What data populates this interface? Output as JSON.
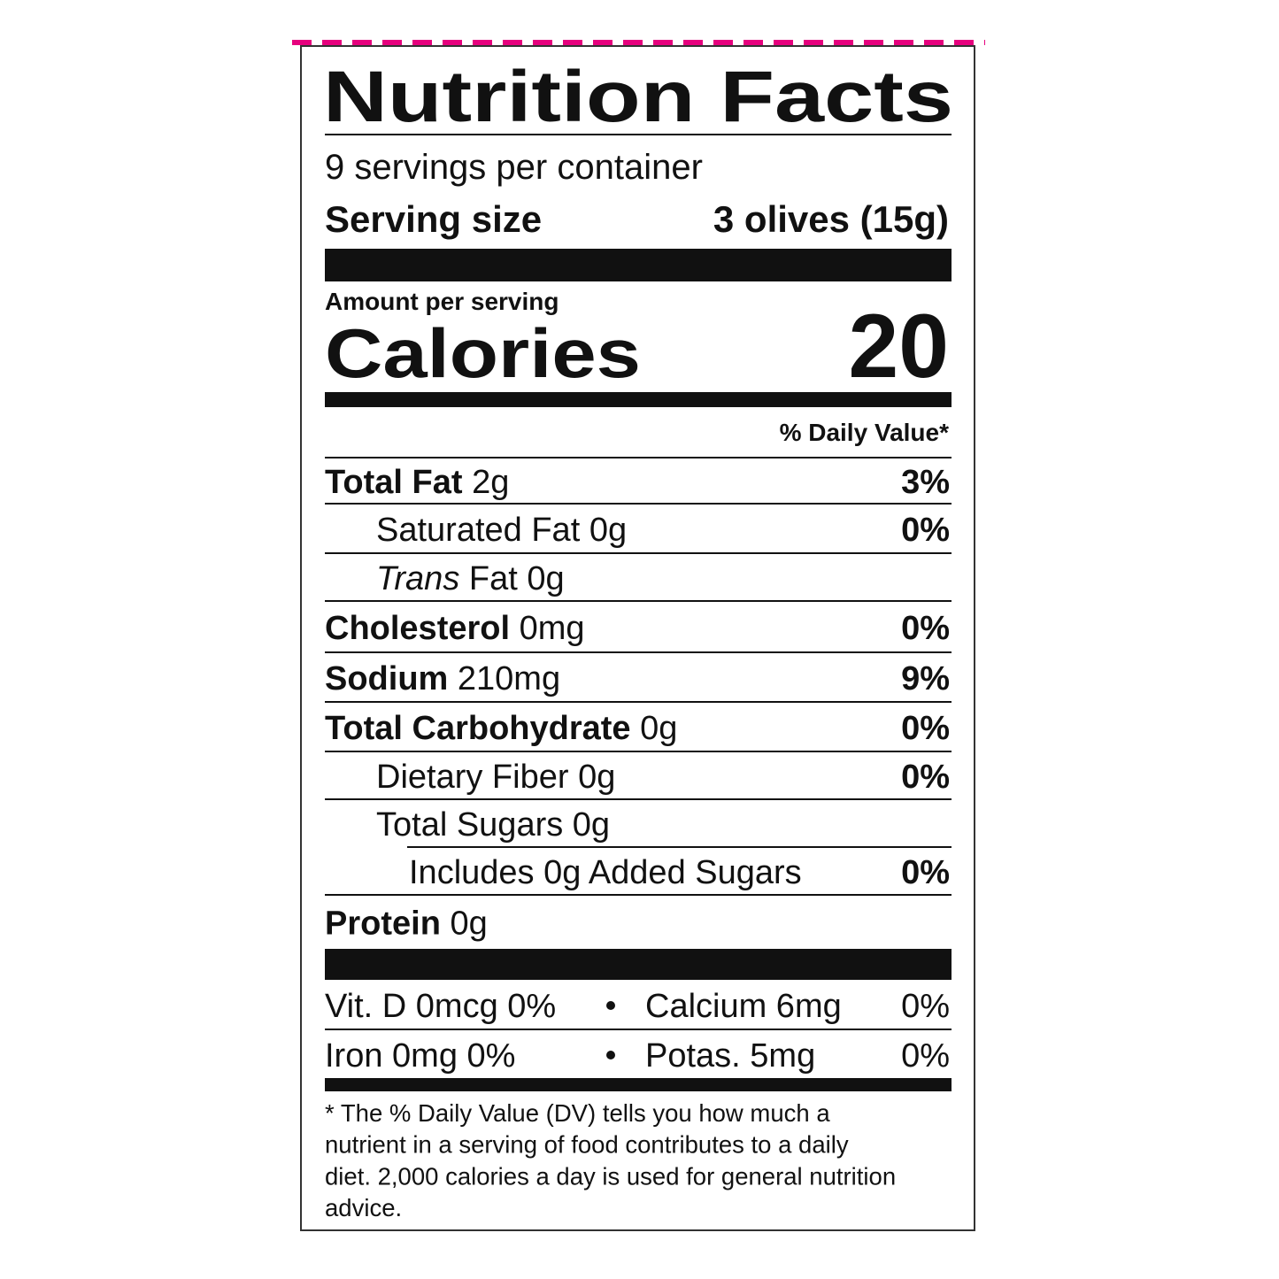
{
  "header": {
    "title": "Nutrition Facts",
    "servings": "9 servings per container",
    "serving_size_label": "Serving size",
    "serving_size_value": "3 olives (15g)"
  },
  "calories": {
    "amount_label": "Amount per serving",
    "label": "Calories",
    "value": "20"
  },
  "daily_value_header": "% Daily Value*",
  "nutrients": [
    {
      "name": "Total Fat",
      "amount": "2g",
      "dv": "3%"
    },
    {
      "name": "Saturated Fat",
      "amount": "0g",
      "dv": "0%"
    },
    {
      "name_italic": "Trans",
      "name": "Fat",
      "amount": "0g"
    },
    {
      "name": "Cholesterol",
      "amount": "0mg",
      "dv": "0%"
    },
    {
      "name": "Sodium",
      "amount": "210mg",
      "dv": "9%"
    },
    {
      "name": "Total Carbohydrate",
      "amount": "0g",
      "dv": "0%"
    },
    {
      "name": "Dietary Fiber",
      "amount": "0g",
      "dv": "0%"
    },
    {
      "name": "Total Sugars",
      "amount": "0g"
    },
    {
      "name": "Includes 0g Added Sugars",
      "dv": "0%"
    },
    {
      "name": "Protein",
      "amount": "0g"
    }
  ],
  "vitamins": [
    {
      "left": "Vit. D 0mcg 0%",
      "right": "Calcium 6mg",
      "dv": "0%"
    },
    {
      "left": "Iron 0mg 0%",
      "right": "Potas. 5mg",
      "dv": "0%"
    }
  ],
  "footnote": [
    "* The % Daily Value (DV) tells you how much a",
    "nutrient in a serving of food contributes to a daily",
    "diet. 2,000 calories a day is used for general nutrition",
    "advice."
  ]
}
